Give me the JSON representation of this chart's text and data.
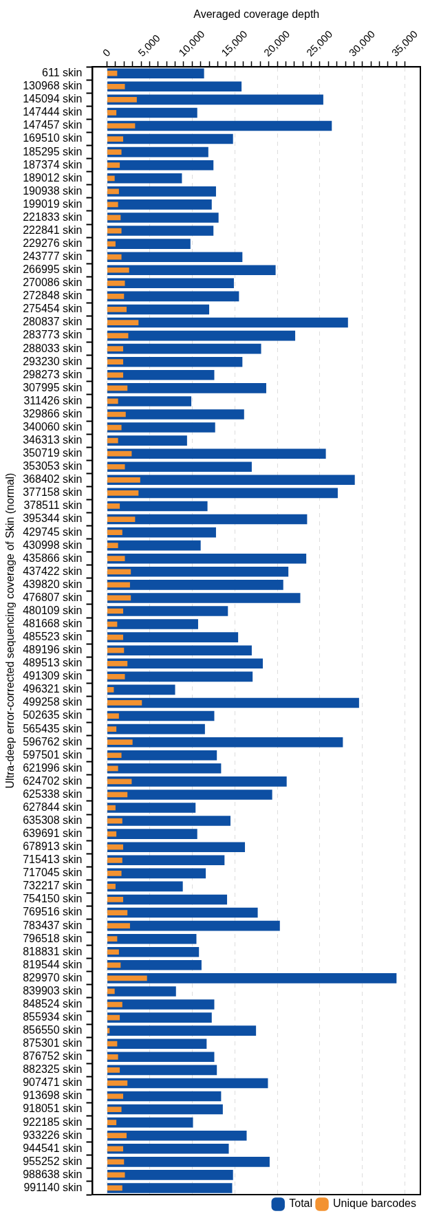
{
  "chart_data": {
    "type": "bar",
    "orientation": "horizontal",
    "xlabel": "Averaged coverage depth",
    "ylabel": "Ultra-deep error-corrected sequencing coverage of Skin (normal)",
    "categories": [
      "611 skin",
      "130968 skin",
      "145094 skin",
      "147444 skin",
      "147457 skin",
      "169510 skin",
      "185295 skin",
      "187374 skin",
      "189012 skin",
      "190938 skin",
      "199019 skin",
      "221833 skin",
      "222841 skin",
      "229276 skin",
      "243777 skin",
      "266995 skin",
      "270086 skin",
      "272848 skin",
      "275454 skin",
      "280837 skin",
      "283773 skin",
      "288033 skin",
      "293230 skin",
      "298273 skin",
      "307995 skin",
      "311426 skin",
      "329866 skin",
      "340060 skin",
      "346313 skin",
      "350719 skin",
      "353053 skin",
      "368402 skin",
      "377158 skin",
      "378511 skin",
      "395344 skin",
      "429745 skin",
      "430998 skin",
      "435866 skin",
      "437422 skin",
      "439820 skin",
      "476807 skin",
      "480109 skin",
      "481668 skin",
      "485523 skin",
      "489196 skin",
      "489513 skin",
      "491309 skin",
      "496321 skin",
      "499258 skin",
      "502635 skin",
      "565435 skin",
      "596762 skin",
      "597501 skin",
      "621996 skin",
      "624702 skin",
      "625338 skin",
      "627844 skin",
      "635308 skin",
      "639691 skin",
      "678913 skin",
      "715413 skin",
      "717045 skin",
      "732217 skin",
      "754150 skin",
      "769516 skin",
      "783437 skin",
      "796518 skin",
      "818831 skin",
      "819544 skin",
      "829970 skin",
      "839903 skin",
      "848524 skin",
      "855934 skin",
      "856550 skin",
      "875301 skin",
      "876752 skin",
      "882325 skin",
      "907471 skin",
      "913698 skin",
      "918051 skin",
      "922185 skin",
      "933226 skin",
      "944541 skin",
      "955252 skin",
      "988638 skin",
      "991140 skin"
    ],
    "series": [
      {
        "name": "Total",
        "color": "#0d4fa3",
        "values": [
          11400,
          15800,
          25400,
          10600,
          26400,
          14800,
          11900,
          12500,
          8800,
          12800,
          12300,
          13100,
          12500,
          9800,
          15900,
          19800,
          14900,
          15500,
          12000,
          28300,
          22100,
          18100,
          15900,
          12600,
          18700,
          9900,
          16100,
          12700,
          9400,
          25700,
          17000,
          29100,
          27100,
          11800,
          23500,
          12800,
          11000,
          23400,
          21300,
          20700,
          22700,
          14200,
          10700,
          15400,
          17000,
          18300,
          17100,
          8000,
          29600,
          12600,
          11500,
          27700,
          12900,
          13400,
          21100,
          19400,
          10400,
          14500,
          10600,
          16200,
          13800,
          11600,
          8900,
          14100,
          17700,
          20300,
          10500,
          10800,
          11100,
          34000,
          8100,
          12600,
          12300,
          17500,
          11700,
          12600,
          12900,
          18900,
          13400,
          13600,
          10100,
          16400,
          14300,
          19100,
          14800,
          14700
        ]
      },
      {
        "name": "Unique barcodes",
        "color": "#f39230",
        "values": [
          1200,
          2100,
          3500,
          1100,
          3300,
          1900,
          1700,
          1500,
          900,
          1400,
          1300,
          1600,
          1700,
          1000,
          1700,
          2600,
          2100,
          2000,
          2300,
          3700,
          2500,
          1900,
          1900,
          1900,
          2400,
          1300,
          2200,
          1700,
          1300,
          2900,
          2100,
          3900,
          3700,
          1500,
          3300,
          1800,
          1300,
          2100,
          2800,
          2700,
          2800,
          1900,
          1200,
          1900,
          2000,
          2400,
          2100,
          800,
          4100,
          1400,
          1100,
          3000,
          1700,
          1300,
          2900,
          2400,
          1000,
          1800,
          1100,
          1900,
          1800,
          1700,
          1000,
          1900,
          2400,
          2700,
          1200,
          1400,
          1600,
          4700,
          900,
          1800,
          1500,
          300,
          1200,
          1300,
          1500,
          2400,
          1900,
          1700,
          1100,
          2300,
          1900,
          2000,
          2100,
          1800
        ]
      }
    ],
    "xlim": [
      -1700,
      36800
    ],
    "xticks": [
      {
        "value": 0,
        "label": "0"
      },
      {
        "value": 1000,
        "label": null
      },
      {
        "value": 2000,
        "label": null
      },
      {
        "value": 3000,
        "label": null
      },
      {
        "value": 4000,
        "label": null
      },
      {
        "value": 5000,
        "label": "5,000"
      },
      {
        "value": 6000,
        "label": null
      },
      {
        "value": 7000,
        "label": null
      },
      {
        "value": 8000,
        "label": null
      },
      {
        "value": 9000,
        "label": null
      },
      {
        "value": 10000,
        "label": "10,000"
      },
      {
        "value": 11000,
        "label": null
      },
      {
        "value": 12000,
        "label": null
      },
      {
        "value": 13000,
        "label": null
      },
      {
        "value": 14000,
        "label": null
      },
      {
        "value": 15000,
        "label": "15,000"
      },
      {
        "value": 16000,
        "label": null
      },
      {
        "value": 17000,
        "label": null
      },
      {
        "value": 18000,
        "label": null
      },
      {
        "value": 19000,
        "label": null
      },
      {
        "value": 20000,
        "label": "20,000"
      },
      {
        "value": 21000,
        "label": null
      },
      {
        "value": 22000,
        "label": null
      },
      {
        "value": 23000,
        "label": null
      },
      {
        "value": 24000,
        "label": null
      },
      {
        "value": 25000,
        "label": "25,000"
      },
      {
        "value": 26000,
        "label": null
      },
      {
        "value": 27000,
        "label": null
      },
      {
        "value": 28000,
        "label": null
      },
      {
        "value": 29000,
        "label": null
      },
      {
        "value": 30000,
        "label": "30,000"
      },
      {
        "value": 31000,
        "label": null
      },
      {
        "value": 32000,
        "label": null
      },
      {
        "value": 33000,
        "label": null
      },
      {
        "value": 34000,
        "label": null
      },
      {
        "value": 35000,
        "label": "35,000"
      }
    ],
    "grid": "x",
    "legend": "bottom right"
  }
}
